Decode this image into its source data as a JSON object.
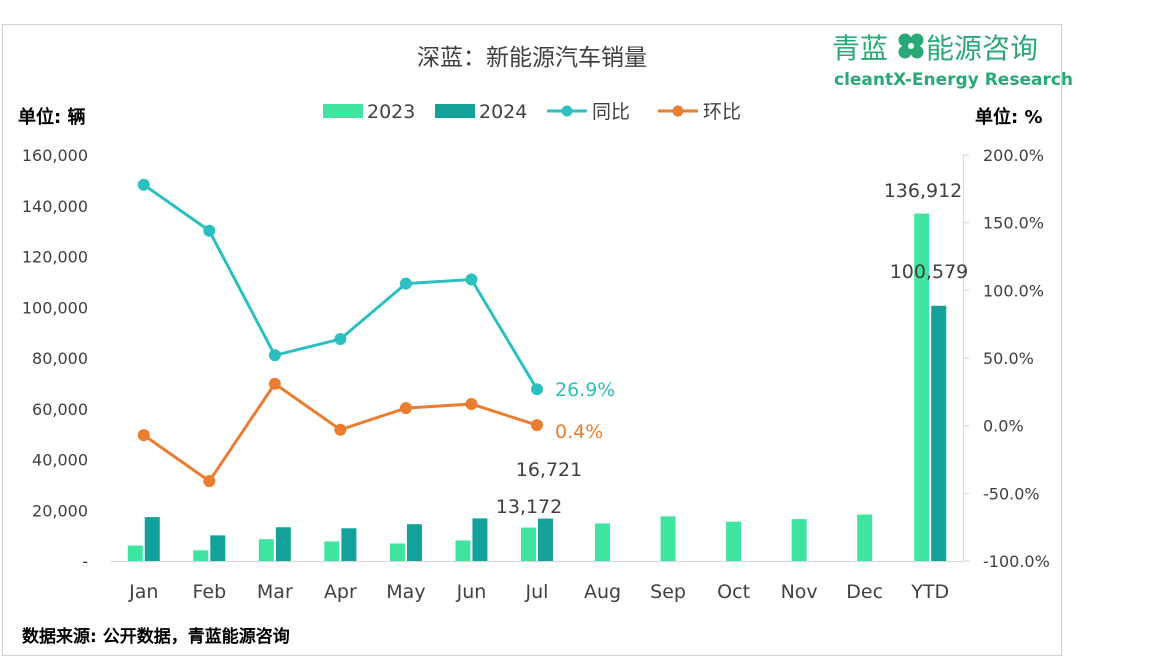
{
  "brand": {
    "name_cn": "青蓝",
    "name_cn2": "能源咨询",
    "name_en": "cleantX-Energy Research",
    "color": "#2aa876"
  },
  "source_note": "数据来源: 公开数据，青蓝能源咨询",
  "colors": {
    "bar2023": "#3ee49f",
    "bar2024": "#14a19a",
    "yoy": "#2cbfbf",
    "mom": "#ea7d30",
    "text": "#404040",
    "axis": "#d9d9d9"
  },
  "chart_data": {
    "type": "bar",
    "title": "深蓝：新能源汽车销量",
    "ylabel_left": "单位: 辆",
    "ylabel_right": "单位: %",
    "categories": [
      "Jan",
      "Feb",
      "Mar",
      "Apr",
      "May",
      "Jun",
      "Jul",
      "Aug",
      "Sep",
      "Oct",
      "Nov",
      "Dec",
      "YTD"
    ],
    "ylim_left": [
      0,
      160000
    ],
    "ylim_right": [
      -100,
      200
    ],
    "yticks_left": [
      "-",
      "20,000",
      "40,000",
      "60,000",
      "80,000",
      "100,000",
      "120,000",
      "140,000",
      "160,000"
    ],
    "yticks_right": [
      "-100.0%",
      "-50.0%",
      "0.0%",
      "50.0%",
      "100.0%",
      "150.0%",
      "200.0%"
    ],
    "legend_position": "top-center",
    "grid": false,
    "series": [
      {
        "name": "2023",
        "kind": "bar",
        "values": [
          6100,
          4200,
          8600,
          7700,
          6900,
          8100,
          13172,
          14800,
          17600,
          15500,
          16500,
          18300,
          136912
        ]
      },
      {
        "name": "2024",
        "kind": "bar",
        "values": [
          17300,
          10100,
          13300,
          12900,
          14500,
          16800,
          16721,
          null,
          null,
          null,
          null,
          null,
          100579
        ]
      },
      {
        "name": "同比",
        "kind": "line",
        "axis": "right",
        "values": [
          178,
          144,
          52,
          64,
          105,
          108,
          26.9,
          null,
          null,
          null,
          null,
          null,
          null
        ]
      },
      {
        "name": "环比",
        "kind": "line",
        "axis": "right",
        "values": [
          -7,
          -41,
          31,
          -3,
          13,
          16,
          0.4,
          null,
          null,
          null,
          null,
          null,
          null
        ]
      }
    ],
    "data_labels": [
      {
        "series": "2023",
        "category": "Jul",
        "text": "13,172"
      },
      {
        "series": "2024",
        "category": "Jul",
        "text": "16,721"
      },
      {
        "series": "2023",
        "category": "YTD",
        "text": "136,912"
      },
      {
        "series": "2024",
        "category": "YTD",
        "text": "100,579"
      },
      {
        "series": "同比",
        "category": "Jul",
        "text": "26.9%"
      },
      {
        "series": "环比",
        "category": "Jul",
        "text": "0.4%"
      }
    ]
  }
}
